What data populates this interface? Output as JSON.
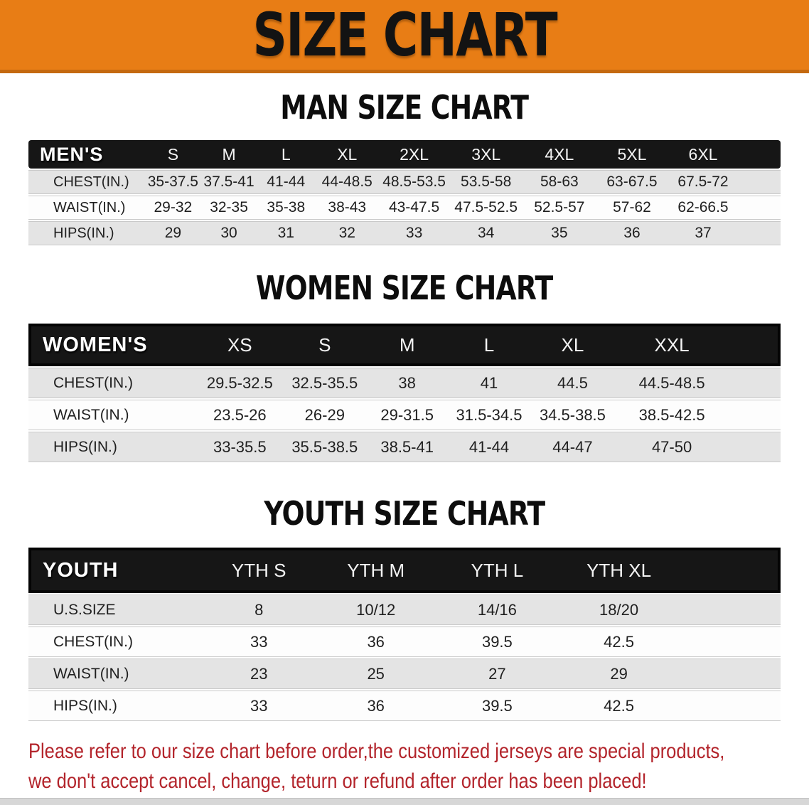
{
  "banner": {
    "title": "SIZE CHART"
  },
  "colors": {
    "banner_bg": "#e87d15",
    "banner_edge": "#c4690f",
    "table_header_bg": "#161616",
    "row_shaded_bg": "#e4e4e4",
    "note_text": "#b3242b"
  },
  "sections": [
    {
      "id": "men",
      "heading": "MAN SIZE CHART",
      "table": {
        "header": [
          "MEN'S",
          "S",
          "M",
          "L",
          "XL",
          "2XL",
          "3XL",
          "4XL",
          "5XL",
          "6XL"
        ],
        "rows": [
          {
            "label": "CHEST(IN.)",
            "values": [
              "35-37.5",
              "37.5-41",
              "41-44",
              "44-48.5",
              "48.5-53.5",
              "53.5-58",
              "58-63",
              "63-67.5",
              "67.5-72"
            ]
          },
          {
            "label": "WAIST(IN.)",
            "values": [
              "29-32",
              "32-35",
              "35-38",
              "38-43",
              "43-47.5",
              "47.5-52.5",
              "52.5-57",
              "57-62",
              "62-66.5"
            ]
          },
          {
            "label": "HIPS(IN.)",
            "values": [
              "29",
              "30",
              "31",
              "32",
              "33",
              "34",
              "35",
              "36",
              "37"
            ]
          }
        ]
      }
    },
    {
      "id": "women",
      "heading": "WOMEN SIZE CHART",
      "table": {
        "header": [
          "WOMEN'S",
          "XS",
          "S",
          "M",
          "L",
          "XL",
          "XXL"
        ],
        "rows": [
          {
            "label": "CHEST(IN.)",
            "values": [
              "29.5-32.5",
              "32.5-35.5",
              "38",
              "41",
              "44.5",
              "44.5-48.5"
            ]
          },
          {
            "label": "WAIST(IN.)",
            "values": [
              "23.5-26",
              "26-29",
              "29-31.5",
              "31.5-34.5",
              "34.5-38.5",
              "38.5-42.5"
            ]
          },
          {
            "label": "HIPS(IN.)",
            "values": [
              "33-35.5",
              "35.5-38.5",
              "38.5-41",
              "41-44",
              "44-47",
              "47-50"
            ]
          }
        ]
      }
    },
    {
      "id": "youth",
      "heading": "YOUTH SIZE CHART",
      "table": {
        "header": [
          "YOUTH",
          "YTH S",
          "YTH M",
          "YTH L",
          "YTH XL"
        ],
        "rows": [
          {
            "label": "U.S.SIZE",
            "values": [
              "8",
              "10/12",
              "14/16",
              "18/20"
            ]
          },
          {
            "label": "CHEST(IN.)",
            "values": [
              "33",
              "36",
              "39.5",
              "42.5"
            ]
          },
          {
            "label": "WAIST(IN.)",
            "values": [
              "23",
              "25",
              "27",
              "29"
            ]
          },
          {
            "label": "HIPS(IN.)",
            "values": [
              "33",
              "36",
              "39.5",
              "42.5"
            ]
          }
        ]
      }
    }
  ],
  "note": {
    "line1": "Please refer to our size chart before order,the customized jerseys are special products,",
    "line2": "we don't accept cancel, change, teturn or refund after order has been placed!"
  }
}
